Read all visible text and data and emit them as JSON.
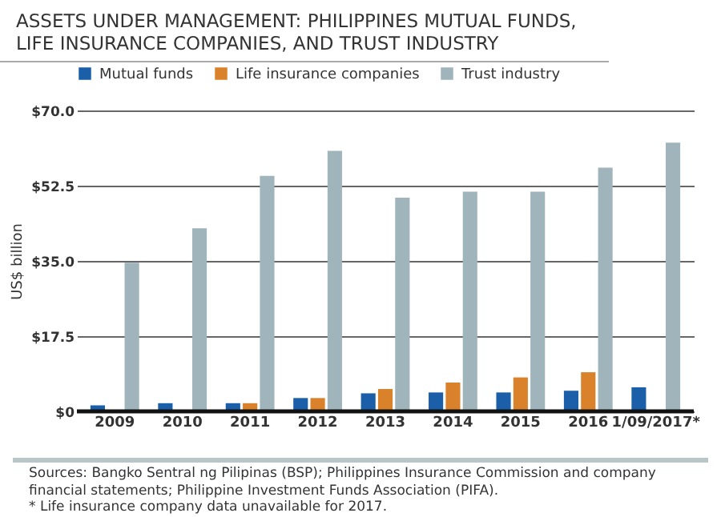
{
  "chart_data": {
    "type": "bar",
    "title": "ASSETS UNDER MANAGEMENT: PHILIPPINES MUTUAL FUNDS, LIFE INSURANCE COMPANIES, AND TRUST INDUSTRY",
    "ylabel": "US$ billion",
    "categories": [
      "2009",
      "2010",
      "2011",
      "2012",
      "2013",
      "2014",
      "2015",
      "2016",
      "1/09/2017*"
    ],
    "series": [
      {
        "name": "Mutual funds",
        "color": "#1a5fa8",
        "values": [
          1.4,
          1.9,
          1.9,
          3.1,
          4.2,
          4.4,
          4.4,
          4.8,
          5.6
        ]
      },
      {
        "name": "Life insurance companies",
        "color": "#d9822b",
        "values": [
          null,
          null,
          1.9,
          3.1,
          5.2,
          6.7,
          7.9,
          9.1,
          null
        ]
      },
      {
        "name": "Trust industry",
        "color": "#9fb4bb",
        "values": [
          34.6,
          42.6,
          54.8,
          60.6,
          49.7,
          51.1,
          51.1,
          56.7,
          62.5
        ]
      }
    ],
    "ylim": [
      0,
      70
    ],
    "yticks": [
      {
        "value": 0,
        "label": "$0"
      },
      {
        "value": 17.5,
        "label": "$17.5"
      },
      {
        "value": 35,
        "label": "$35.0"
      },
      {
        "value": 52.5,
        "label": "$52.5"
      },
      {
        "value": 70,
        "label": "$70.0"
      }
    ],
    "grid": "y",
    "legend": "top",
    "annotations": [
      "Sources: Bangko Sentral ng Pilipinas (BSP); Philippines Insurance Commission and company financial statements; Philippine Investment Funds Association (PIFA).",
      "* Life insurance company data unavailable for 2017."
    ]
  }
}
